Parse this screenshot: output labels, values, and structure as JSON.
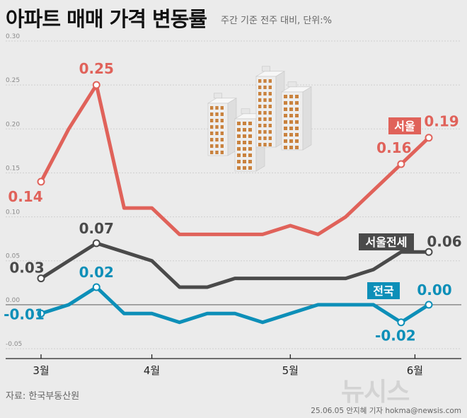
{
  "title": "아파트 매매 가격 변동률",
  "subtitle": "주간 기준 전주 대비, 단위:%",
  "source": "자료: 한국부동산원",
  "credit": "25.06.05 안지혜 기자 hokma@newsis.com",
  "watermark": "뉴시스",
  "colors": {
    "seoul": "#e0625a",
    "seoul_jeonse": "#4a4a4a",
    "national": "#0d8fb8",
    "building_light": "#eeeeee",
    "building_side": "#dedede",
    "window": "#c9823e",
    "background": "#ebebeb"
  },
  "chart_data": {
    "type": "line",
    "ylim": [
      -0.05,
      0.3
    ],
    "yticks": [
      "0.30",
      "0.25",
      "0.20",
      "0.15",
      "0.10",
      "0.05",
      "0.00",
      "-0.05"
    ],
    "grid": true,
    "x_labels": [
      "3월",
      "4월",
      "5월",
      "6월"
    ],
    "series": [
      {
        "name": "서울",
        "color": "#e0625a",
        "values": [
          0.14,
          0.2,
          0.25,
          0.11,
          0.11,
          0.08,
          0.08,
          0.08,
          0.08,
          0.09,
          0.08,
          0.1,
          0.13,
          0.16,
          0.19
        ],
        "labels": [
          {
            "index": 0,
            "text": "0.14"
          },
          {
            "index": 2,
            "text": "0.25"
          },
          {
            "index": 13,
            "text": "0.16"
          },
          {
            "index": 14,
            "text": "0.19"
          }
        ]
      },
      {
        "name": "서울전세",
        "color": "#4a4a4a",
        "values": [
          0.03,
          0.05,
          0.07,
          0.06,
          0.05,
          0.02,
          0.02,
          0.03,
          0.03,
          0.03,
          0.03,
          0.03,
          0.04,
          0.06,
          0.06
        ],
        "labels": [
          {
            "index": 0,
            "text": "0.03"
          },
          {
            "index": 2,
            "text": "0.07"
          },
          {
            "index": 14,
            "text": "0.06"
          }
        ]
      },
      {
        "name": "전국",
        "color": "#0d8fb8",
        "values": [
          -0.01,
          0.0,
          0.02,
          -0.01,
          -0.01,
          -0.02,
          -0.01,
          -0.01,
          -0.02,
          -0.01,
          0.0,
          0.0,
          0.0,
          -0.02,
          0.0
        ],
        "labels": [
          {
            "index": 0,
            "text": "-0.01"
          },
          {
            "index": 2,
            "text": "0.02"
          },
          {
            "index": 13,
            "text": "-0.02"
          },
          {
            "index": 14,
            "text": "0.00"
          }
        ]
      }
    ]
  }
}
